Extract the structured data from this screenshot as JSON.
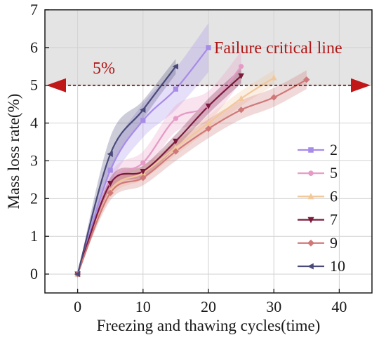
{
  "chart_data": {
    "type": "line",
    "xlabel": "Freezing and thawing cycles(time)",
    "ylabel": "Mass loss rate(%)",
    "xlim": [
      -5,
      45
    ],
    "ylim": [
      -0.5,
      7
    ],
    "xticks": [
      0,
      10,
      20,
      30,
      40
    ],
    "yticks": [
      0,
      1,
      2,
      3,
      4,
      5,
      6,
      7
    ],
    "grid": true,
    "legend_position": "right",
    "failure_zone_from": 5,
    "annotations": {
      "critical_label": "Failure critical line",
      "threshold_label": "5%",
      "threshold_value": 5,
      "colors": {
        "critical_text": "#b01818",
        "threshold_text": "#b01818",
        "threshold_line": "#6b1010",
        "arrow": "#c01818",
        "failure_zone": "#e4e4e4"
      }
    },
    "series": [
      {
        "name": "2",
        "color": "#a78be8",
        "marker": "square",
        "x": [
          0,
          5,
          10,
          15,
          20
        ],
        "y": [
          0,
          2.75,
          4.07,
          4.9,
          6.0
        ],
        "band": [
          0,
          0.35,
          0.45,
          0.55,
          0.65
        ]
      },
      {
        "name": "5",
        "color": "#e69ac6",
        "marker": "circle",
        "x": [
          0,
          5,
          10,
          15,
          20,
          25
        ],
        "y": [
          0,
          2.4,
          2.95,
          4.12,
          4.45,
          5.5
        ],
        "band": [
          0,
          0.25,
          0.3,
          0.35,
          0.4,
          0.4
        ]
      },
      {
        "name": "6",
        "color": "#f2c79a",
        "marker": "triangle-up",
        "x": [
          0,
          5,
          10,
          15,
          20,
          25,
          30
        ],
        "y": [
          0,
          2.2,
          2.68,
          3.35,
          4.0,
          4.65,
          5.2
        ],
        "band": [
          0,
          0.18,
          0.18,
          0.2,
          0.2,
          0.2,
          0.2
        ]
      },
      {
        "name": "7",
        "color": "#7a1a3c",
        "marker": "triangle-down",
        "x": [
          0,
          5,
          10,
          15,
          20,
          25
        ],
        "y": [
          0,
          2.4,
          2.72,
          3.52,
          4.45,
          5.25
        ],
        "band": [
          0,
          0.15,
          0.15,
          0.18,
          0.2,
          0.2
        ]
      },
      {
        "name": "9",
        "color": "#d07878",
        "marker": "diamond",
        "x": [
          0,
          5,
          10,
          15,
          20,
          25,
          30,
          35
        ],
        "y": [
          0,
          2.15,
          2.55,
          3.25,
          3.85,
          4.35,
          4.68,
          5.15
        ],
        "band": [
          0,
          0.2,
          0.2,
          0.25,
          0.25,
          0.25,
          0.25,
          0.25
        ]
      },
      {
        "name": "10",
        "color": "#4a4a7a",
        "marker": "triangle-left",
        "x": [
          0,
          5,
          10,
          15
        ],
        "y": [
          0,
          3.18,
          4.35,
          5.5
        ],
        "band": [
          0,
          0.45,
          0.25,
          0.2
        ]
      }
    ]
  }
}
